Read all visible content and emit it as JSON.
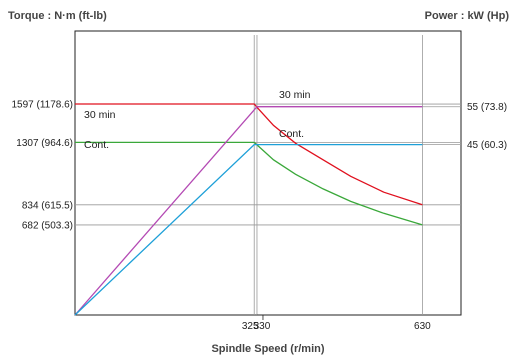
{
  "chart_data": {
    "type": "line",
    "left_axis_label": "Torque : N·m (ft-lb)",
    "right_axis_label": "Power : kW (Hp)",
    "xlabel": "Spindle Speed (r/min)",
    "xlim": [
      0,
      700
    ],
    "x_ticks": [
      "325",
      "330",
      "630"
    ],
    "left_ticks": [
      "1597 (1178.6)",
      "1307 (964.6)",
      "834 (615.5)",
      "682 (503.3)"
    ],
    "right_ticks": [
      "55 (73.8)",
      "45 (60.3)"
    ],
    "torque_ylim": [
      0,
      2150
    ],
    "power_ylim": [
      0,
      75
    ],
    "colors": {
      "torque_30min": "#e0101e",
      "torque_cont": "#3aa83a",
      "power_30min": "#b44ab4",
      "power_cont": "#1ea0d8",
      "frame": "#222222",
      "guide": "#999999"
    },
    "series": [
      {
        "name": "30 min",
        "axis": "torque",
        "color": "#e0101e",
        "points": [
          [
            0,
            1597
          ],
          [
            325,
            1597
          ],
          [
            330,
            1572
          ],
          [
            360,
            1435
          ],
          [
            400,
            1300
          ],
          [
            450,
            1175
          ],
          [
            500,
            1050
          ],
          [
            560,
            930
          ],
          [
            630,
            834
          ]
        ]
      },
      {
        "name": "Cont.",
        "axis": "torque",
        "color": "#3aa83a",
        "points": [
          [
            0,
            1307
          ],
          [
            325,
            1307
          ],
          [
            330,
            1288
          ],
          [
            360,
            1175
          ],
          [
            400,
            1065
          ],
          [
            450,
            955
          ],
          [
            500,
            860
          ],
          [
            560,
            770
          ],
          [
            630,
            682
          ]
        ]
      },
      {
        "name": "30 min",
        "axis": "power",
        "color": "#b44ab4",
        "points": [
          [
            0,
            0
          ],
          [
            330,
            55
          ],
          [
            630,
            55
          ]
        ]
      },
      {
        "name": "Cont.",
        "axis": "power",
        "color": "#1ea0d8",
        "points": [
          [
            0,
            0
          ],
          [
            325,
            45
          ],
          [
            630,
            45
          ]
        ]
      }
    ]
  }
}
